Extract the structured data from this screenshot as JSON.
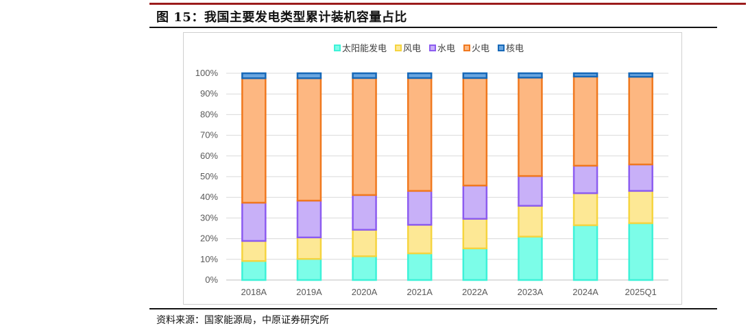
{
  "header": {
    "figure_title": "图 15：我国主要发电类型累计装机容量占比"
  },
  "footer": {
    "source": "资料来源：国家能源局，中原证券研究所"
  },
  "chart_data": {
    "type": "bar",
    "stacked": true,
    "categories": [
      "2018A",
      "2019A",
      "2020A",
      "2021A",
      "2022A",
      "2023A",
      "2024A",
      "2025Q1"
    ],
    "series": [
      {
        "name": "太阳能发电",
        "color": "#3ef2d8",
        "fill": "#7cfde8",
        "values": [
          9.2,
          10.2,
          11.5,
          12.9,
          15.3,
          21.0,
          26.5,
          27.5
        ]
      },
      {
        "name": "风电",
        "color": "#f5d43f",
        "fill": "#fde895",
        "values": [
          9.7,
          10.4,
          12.8,
          13.8,
          14.3,
          14.9,
          15.5,
          15.6
        ]
      },
      {
        "name": "水电",
        "color": "#8c5cf0",
        "fill": "#c8b0f8",
        "values": [
          18.5,
          17.8,
          16.8,
          16.4,
          16.1,
          14.4,
          13.3,
          12.8
        ]
      },
      {
        "name": "火电",
        "color": "#f0781e",
        "fill": "#fdb781",
        "values": [
          60.2,
          59.2,
          56.6,
          54.6,
          52.0,
          47.6,
          43.1,
          42.4
        ]
      },
      {
        "name": "核电",
        "color": "#1668b8",
        "fill": "#6aa6e0",
        "values": [
          2.4,
          2.4,
          2.3,
          2.3,
          2.3,
          2.1,
          1.6,
          1.7
        ]
      }
    ],
    "y_ticks": [
      "0%",
      "10%",
      "20%",
      "30%",
      "40%",
      "50%",
      "60%",
      "70%",
      "80%",
      "90%",
      "100%"
    ],
    "ylim": [
      0,
      100
    ],
    "grid": true,
    "legend_position": "top"
  }
}
